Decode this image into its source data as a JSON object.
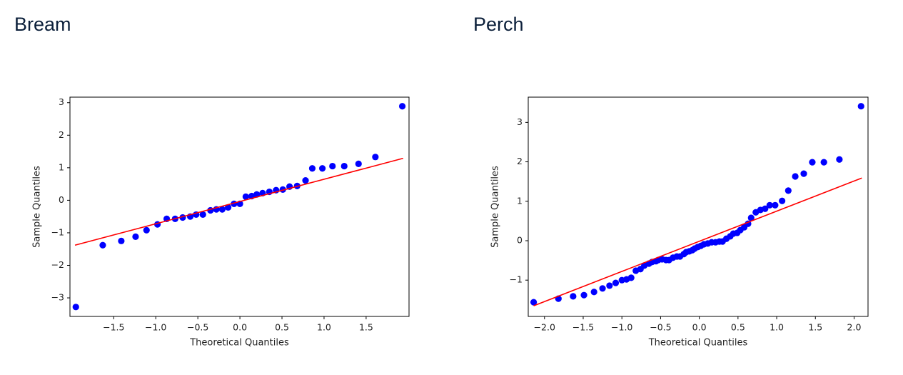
{
  "chart_data": [
    {
      "type": "scatter",
      "title": "Bream",
      "xlabel": "Theoretical Quantiles",
      "ylabel": "Sample Quantiles",
      "xlim": [
        -2.02,
        2.01
      ],
      "ylim": [
        -3.57,
        3.17
      ],
      "xticks": [
        {
          "value": -1.5,
          "label": "−1.5"
        },
        {
          "value": -1.0,
          "label": "−1.0"
        },
        {
          "value": -0.5,
          "label": "−0.5"
        },
        {
          "value": 0,
          "label": "0.0"
        },
        {
          "value": 0.5,
          "label": "0.5"
        },
        {
          "value": 1,
          "label": "1.0"
        },
        {
          "value": 1.5,
          "label": "1.5"
        }
      ],
      "yticks": [
        {
          "value": -3,
          "label": "−3"
        },
        {
          "value": -2,
          "label": "−2"
        },
        {
          "value": -1,
          "label": "−1"
        },
        0,
        1,
        2,
        3
      ],
      "points": {
        "color": "#0000ff",
        "x": [
          -1.95,
          -1.63,
          -1.41,
          -1.24,
          -1.11,
          -0.98,
          -0.87,
          -0.77,
          -0.68,
          -0.59,
          -0.52,
          -0.44,
          -0.35,
          -0.28,
          -0.21,
          -0.14,
          -0.07,
          0.0,
          0.07,
          0.14,
          0.2,
          0.27,
          0.35,
          0.43,
          0.51,
          0.59,
          0.68,
          0.78,
          0.86,
          0.98,
          1.1,
          1.24,
          1.41,
          1.61,
          1.93
        ],
        "y": [
          -3.28,
          -1.38,
          -1.25,
          -1.12,
          -0.92,
          -0.74,
          -0.57,
          -0.57,
          -0.53,
          -0.5,
          -0.44,
          -0.44,
          -0.31,
          -0.28,
          -0.28,
          -0.22,
          -0.11,
          -0.11,
          0.11,
          0.13,
          0.18,
          0.22,
          0.26,
          0.31,
          0.33,
          0.42,
          0.44,
          0.61,
          0.98,
          0.98,
          1.05,
          1.05,
          1.12,
          1.33,
          2.89
        ]
      },
      "fit_line": {
        "color": "#ff0000",
        "x": [
          -1.96,
          1.94
        ],
        "y": [
          -1.38,
          1.29
        ]
      }
    },
    {
      "type": "scatter",
      "title": "Perch",
      "xlabel": "Theoretical Quantiles",
      "ylabel": "Sample Quantiles",
      "xlim": [
        -2.21,
        2.18
      ],
      "ylim": [
        -1.92,
        3.64
      ],
      "xticks": [
        {
          "value": -2,
          "label": "−2.0"
        },
        {
          "value": -1.5,
          "label": "−1.5"
        },
        {
          "value": -1,
          "label": "−1.0"
        },
        {
          "value": -0.5,
          "label": "−0.5"
        },
        {
          "value": 0,
          "label": "0.0"
        },
        {
          "value": 0.5,
          "label": "0.5"
        },
        {
          "value": 1,
          "label": "1.0"
        },
        {
          "value": 1.5,
          "label": "1.5"
        },
        {
          "value": 2,
          "label": "2.0"
        }
      ],
      "yticks": [
        {
          "value": -1,
          "label": "−1"
        },
        0,
        1,
        2,
        3
      ],
      "points": {
        "color": "#0000ff",
        "x": [
          -2.14,
          -1.82,
          -1.63,
          -1.49,
          -1.36,
          -1.25,
          -1.16,
          -1.08,
          -1.0,
          -0.94,
          -0.88,
          -0.82,
          -0.76,
          -0.71,
          -0.65,
          -0.61,
          -0.56,
          -0.53,
          -0.48,
          -0.43,
          -0.39,
          -0.34,
          -0.29,
          -0.25,
          -0.2,
          -0.17,
          -0.13,
          -0.09,
          -0.06,
          -0.02,
          0.02,
          0.06,
          0.11,
          0.16,
          0.21,
          0.26,
          0.3,
          0.35,
          0.4,
          0.44,
          0.49,
          0.53,
          0.58,
          0.63,
          0.67,
          0.73,
          0.79,
          0.85,
          0.91,
          0.98,
          1.07,
          1.15,
          1.24,
          1.35,
          1.46,
          1.61,
          1.81,
          2.09
        ],
        "y": [
          -1.56,
          -1.47,
          -1.41,
          -1.38,
          -1.3,
          -1.21,
          -1.14,
          -1.07,
          -1.0,
          -0.98,
          -0.94,
          -0.76,
          -0.72,
          -0.63,
          -0.58,
          -0.54,
          -0.52,
          -0.49,
          -0.47,
          -0.49,
          -0.49,
          -0.43,
          -0.4,
          -0.4,
          -0.34,
          -0.29,
          -0.27,
          -0.24,
          -0.2,
          -0.16,
          -0.13,
          -0.09,
          -0.07,
          -0.04,
          -0.04,
          -0.02,
          -0.02,
          0.05,
          0.11,
          0.18,
          0.2,
          0.27,
          0.34,
          0.43,
          0.58,
          0.72,
          0.78,
          0.81,
          0.9,
          0.9,
          1.01,
          1.27,
          1.63,
          1.7,
          1.99,
          1.99,
          2.06,
          3.41
        ]
      },
      "fit_line": {
        "color": "#ff0000",
        "x": [
          -2.14,
          2.1
        ],
        "y": [
          -1.65,
          1.59
        ]
      }
    }
  ]
}
